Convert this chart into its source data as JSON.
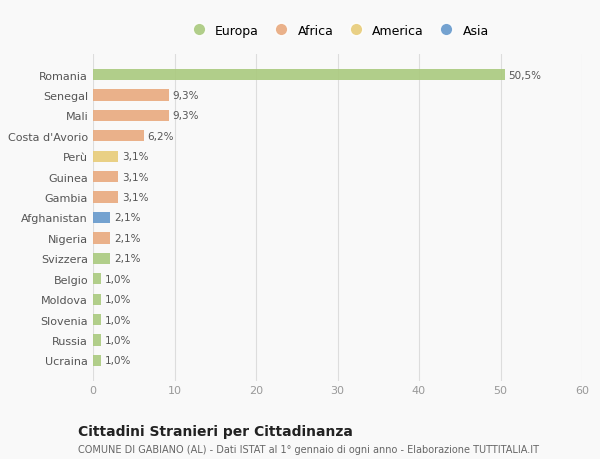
{
  "countries": [
    "Romania",
    "Senegal",
    "Mali",
    "Costa d'Avorio",
    "Perù",
    "Guinea",
    "Gambia",
    "Afghanistan",
    "Nigeria",
    "Svizzera",
    "Belgio",
    "Moldova",
    "Slovenia",
    "Russia",
    "Ucraina"
  ],
  "values": [
    50.5,
    9.3,
    9.3,
    6.2,
    3.1,
    3.1,
    3.1,
    2.1,
    2.1,
    2.1,
    1.0,
    1.0,
    1.0,
    1.0,
    1.0
  ],
  "labels": [
    "50,5%",
    "9,3%",
    "9,3%",
    "6,2%",
    "3,1%",
    "3,1%",
    "3,1%",
    "2,1%",
    "2,1%",
    "2,1%",
    "1,0%",
    "1,0%",
    "1,0%",
    "1,0%",
    "1,0%"
  ],
  "continents": [
    "Europa",
    "Africa",
    "Africa",
    "Africa",
    "America",
    "Africa",
    "Africa",
    "Asia",
    "Africa",
    "Europa",
    "Europa",
    "Europa",
    "Europa",
    "Europa",
    "Europa"
  ],
  "continent_colors": {
    "Europa": "#aaca7e",
    "Africa": "#e9aa7e",
    "America": "#e8cc78",
    "Asia": "#6699cc"
  },
  "legend_order": [
    "Europa",
    "Africa",
    "America",
    "Asia"
  ],
  "title": "Cittadini Stranieri per Cittadinanza",
  "subtitle": "COMUNE DI GABIANO (AL) - Dati ISTAT al 1° gennaio di ogni anno - Elaborazione TUTTITALIA.IT",
  "xlim": [
    0,
    60
  ],
  "xticks": [
    0,
    10,
    20,
    30,
    40,
    50,
    60
  ],
  "background_color": "#f9f9f9",
  "bar_alpha": 0.9
}
